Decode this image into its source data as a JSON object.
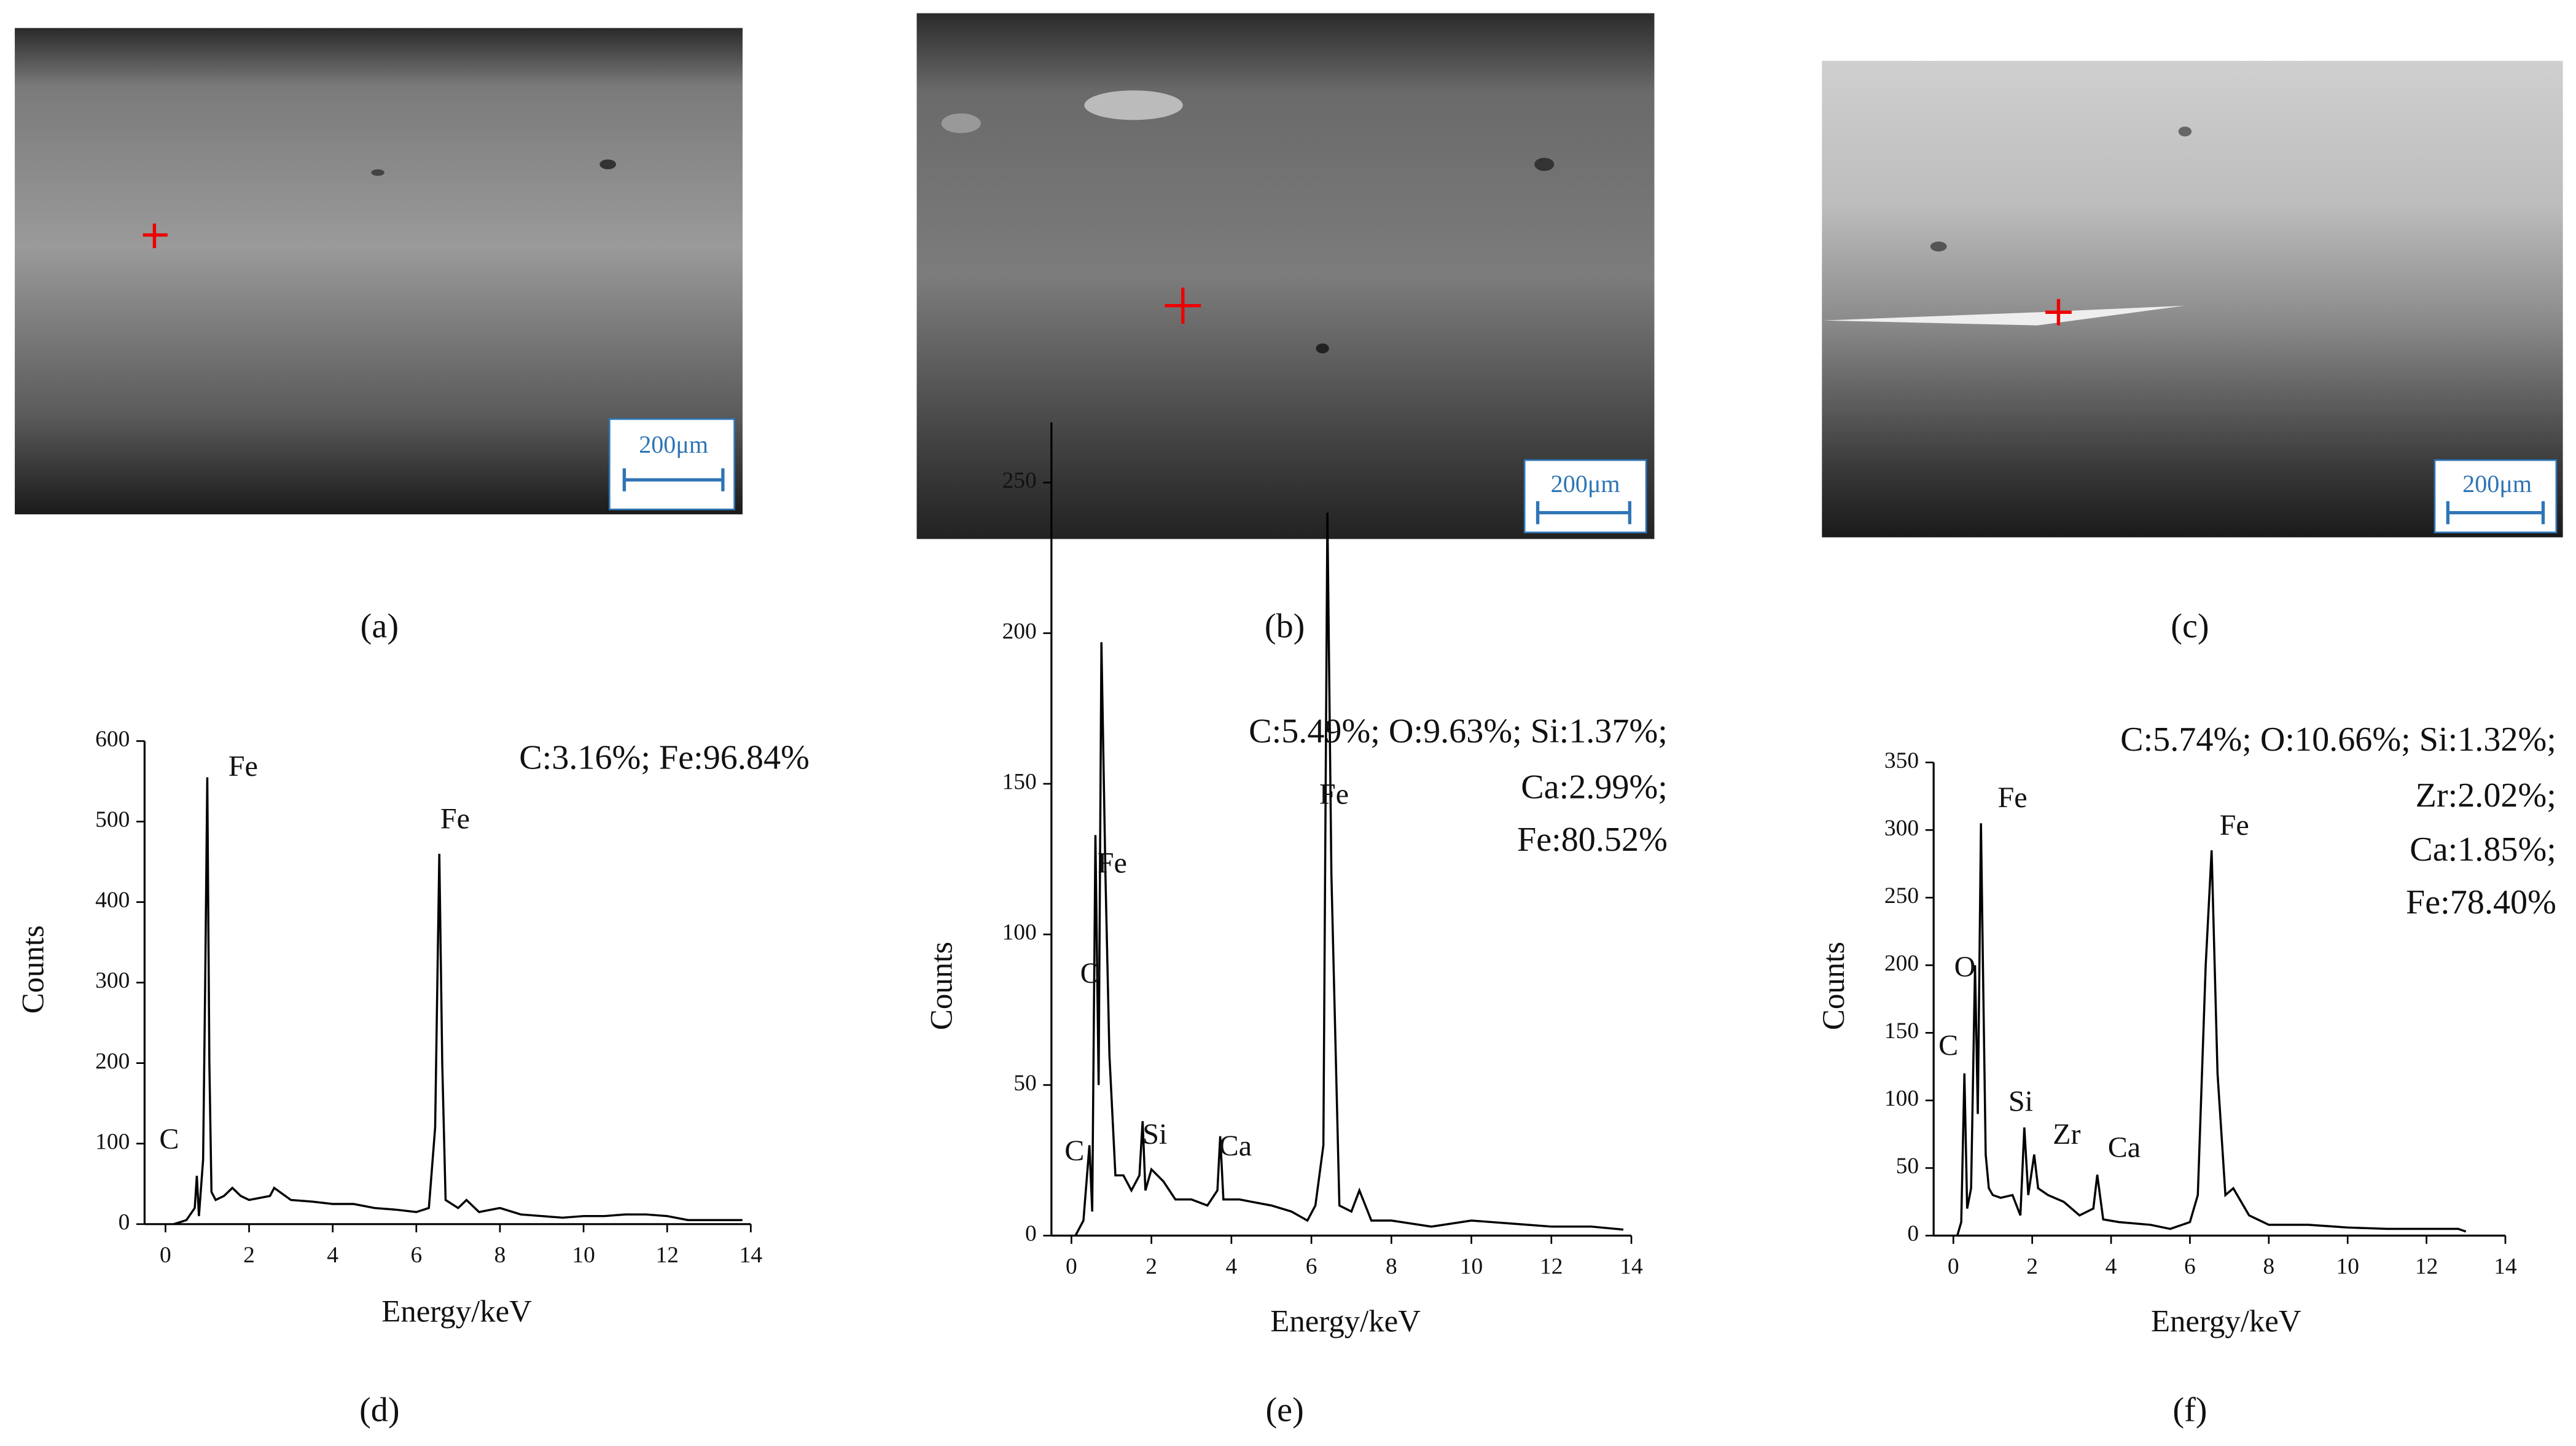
{
  "figure": {
    "images": [
      {
        "caption": "(a)",
        "scale_bar": "200μm"
      },
      {
        "caption": "(b)",
        "scale_bar": "200μm"
      },
      {
        "caption": "(c)",
        "scale_bar": "200μm"
      }
    ]
  },
  "chart_data": [
    {
      "type": "line",
      "caption": "(d)",
      "x_label": "Energy/keV",
      "y_label": "Counts",
      "color": "#000000",
      "annotation": [
        "C:3.16%; Fe:96.84%"
      ],
      "peak_labels": [
        "C",
        "Fe",
        "Fe"
      ],
      "xlim": [
        -0.5,
        14
      ],
      "ylim": [
        0,
        600
      ],
      "xticks": [
        0,
        2,
        4,
        6,
        8,
        10,
        12,
        14
      ],
      "yticks": [
        0,
        100,
        200,
        300,
        400,
        500,
        600
      ],
      "x": [
        0.2,
        0.5,
        0.7,
        0.75,
        0.8,
        0.9,
        0.95,
        1.0,
        1.05,
        1.1,
        1.2,
        1.4,
        1.6,
        1.8,
        2.0,
        2.5,
        2.6,
        3.0,
        3.5,
        4.0,
        4.5,
        5.0,
        5.5,
        6.0,
        6.3,
        6.45,
        6.55,
        6.62,
        6.7,
        6.85,
        7.0,
        7.2,
        7.5,
        8.0,
        8.5,
        9.0,
        9.5,
        10,
        10.5,
        11,
        11.5,
        12,
        12.5,
        13,
        13.5,
        13.8
      ],
      "values": [
        0,
        5,
        20,
        60,
        10,
        80,
        300,
        555,
        200,
        40,
        30,
        35,
        45,
        35,
        30,
        35,
        45,
        30,
        28,
        25,
        25,
        20,
        18,
        15,
        20,
        120,
        460,
        200,
        30,
        25,
        20,
        30,
        15,
        20,
        12,
        10,
        8,
        10,
        10,
        12,
        12,
        10,
        5,
        5,
        5,
        5
      ]
    },
    {
      "type": "line",
      "caption": "(e)",
      "x_label": "Energy/keV",
      "y_label": "Counts",
      "color": "#000000",
      "annotation": [
        "C:5.49%; O:9.63%; Si:1.37%;",
        "Ca:2.99%;",
        "Fe:80.52%"
      ],
      "peak_labels": [
        "C",
        "O",
        "Fe",
        "Si",
        "Ca",
        "Fe"
      ],
      "xlim": [
        -0.5,
        14
      ],
      "ylim": [
        0,
        270
      ],
      "xticks": [
        0,
        2,
        4,
        6,
        8,
        10,
        12,
        14
      ],
      "yticks": [
        0,
        50,
        100,
        150,
        200,
        250
      ],
      "x": [
        0.1,
        0.3,
        0.45,
        0.52,
        0.6,
        0.68,
        0.75,
        0.85,
        0.95,
        1.1,
        1.3,
        1.5,
        1.7,
        1.78,
        1.85,
        2.0,
        2.3,
        2.6,
        3.0,
        3.4,
        3.65,
        3.72,
        3.8,
        4.2,
        5.0,
        5.5,
        5.9,
        6.1,
        6.3,
        6.4,
        6.5,
        6.7,
        7.0,
        7.2,
        7.5,
        8,
        9,
        10,
        11,
        12,
        13,
        13.8
      ],
      "values": [
        0,
        5,
        30,
        8,
        133,
        50,
        197,
        120,
        60,
        20,
        20,
        15,
        20,
        38,
        15,
        22,
        18,
        12,
        12,
        10,
        15,
        33,
        12,
        12,
        10,
        8,
        5,
        10,
        30,
        240,
        120,
        10,
        8,
        15,
        5,
        5,
        3,
        5,
        4,
        3,
        3,
        2
      ]
    },
    {
      "type": "line",
      "caption": "(f)",
      "x_label": "Energy/keV",
      "y_label": "Counts",
      "color": "#000000",
      "annotation": [
        "C:5.74%; O:10.66%; Si:1.32%;",
        "Zr:2.02%;",
        "Ca:1.85%;",
        "Fe:78.40%"
      ],
      "peak_labels": [
        "C",
        "O",
        "Fe",
        "Si",
        "Zr",
        "Ca",
        "Fe"
      ],
      "xlim": [
        -0.5,
        14
      ],
      "ylim": [
        0,
        350
      ],
      "xticks": [
        0,
        2,
        4,
        6,
        8,
        10,
        12,
        14
      ],
      "yticks": [
        0,
        50,
        100,
        150,
        200,
        250,
        300,
        350
      ],
      "x": [
        0.1,
        0.2,
        0.28,
        0.35,
        0.45,
        0.55,
        0.62,
        0.7,
        0.75,
        0.82,
        0.9,
        1.0,
        1.2,
        1.5,
        1.7,
        1.8,
        1.9,
        2.05,
        2.15,
        2.4,
        2.8,
        3.2,
        3.55,
        3.65,
        3.8,
        4.2,
        5,
        5.5,
        6,
        6.2,
        6.4,
        6.55,
        6.7,
        6.9,
        7.1,
        7.5,
        8,
        9,
        10,
        11,
        12,
        12.8,
        13
      ],
      "values": [
        0,
        10,
        120,
        20,
        35,
        200,
        90,
        305,
        200,
        60,
        35,
        30,
        28,
        30,
        15,
        80,
        30,
        60,
        35,
        30,
        25,
        15,
        20,
        45,
        12,
        10,
        8,
        5,
        10,
        30,
        200,
        285,
        120,
        30,
        35,
        15,
        8,
        8,
        6,
        5,
        5,
        5,
        3
      ]
    }
  ]
}
